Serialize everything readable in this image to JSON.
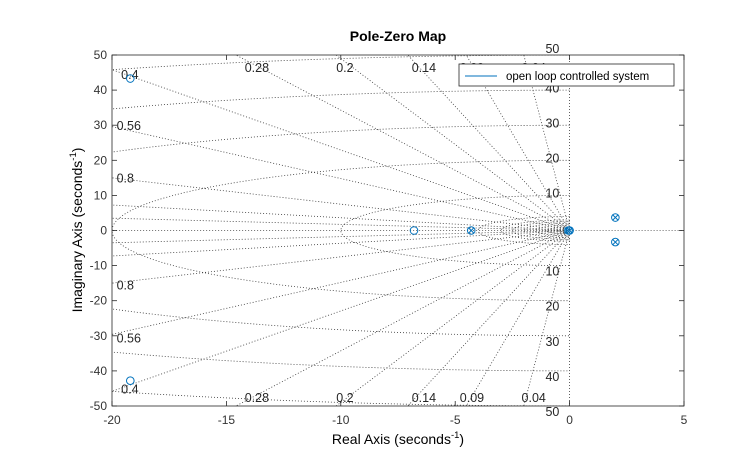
{
  "chart_data": {
    "type": "scatter",
    "title": "Pole-Zero Map",
    "xlabel": {
      "text": "Real Axis (seconds",
      "sup": "-1",
      "close": ")"
    },
    "ylabel": {
      "text": "Imaginary Axis (seconds",
      "sup": "-1",
      "close": ")"
    },
    "xlim": [
      -20,
      5
    ],
    "ylim": [
      -50,
      50
    ],
    "xticks": [
      -20,
      -15,
      -10,
      -5,
      0,
      5
    ],
    "yticks": [
      -50,
      -40,
      -30,
      -20,
      -10,
      0,
      10,
      20,
      30,
      40,
      50
    ],
    "grid": true,
    "grid_type": "damping-ratio and natural-frequency grid (zgrid)",
    "damping_labels": [
      "0.4",
      "0.28",
      "0.2",
      "0.14",
      "0.09",
      "0.04",
      "0.56",
      "0.8"
    ],
    "frequency_labels": [
      "50",
      "40",
      "30",
      "20",
      "10"
    ],
    "legend_position": "top-right",
    "series": [
      {
        "name": "open loop controlled system",
        "color": "#0072BD",
        "zeros": [
          {
            "x": -19.2,
            "y": 43.3
          },
          {
            "x": -19.2,
            "y": -42.8
          },
          {
            "x": -6.8,
            "y": 0
          },
          {
            "x": -4.3,
            "y": 0
          },
          {
            "x": -0.05,
            "y": 0
          },
          {
            "x": 0,
            "y": 0
          },
          {
            "x": 2.0,
            "y": 3.7
          },
          {
            "x": 2.0,
            "y": -3.3
          }
        ],
        "poles": [
          {
            "x": -4.3,
            "y": 0
          },
          {
            "x": -0.1,
            "y": 0
          },
          {
            "x": 0,
            "y": 0
          },
          {
            "x": 2.0,
            "y": 3.7
          },
          {
            "x": 2.0,
            "y": -3.3
          }
        ]
      }
    ]
  }
}
